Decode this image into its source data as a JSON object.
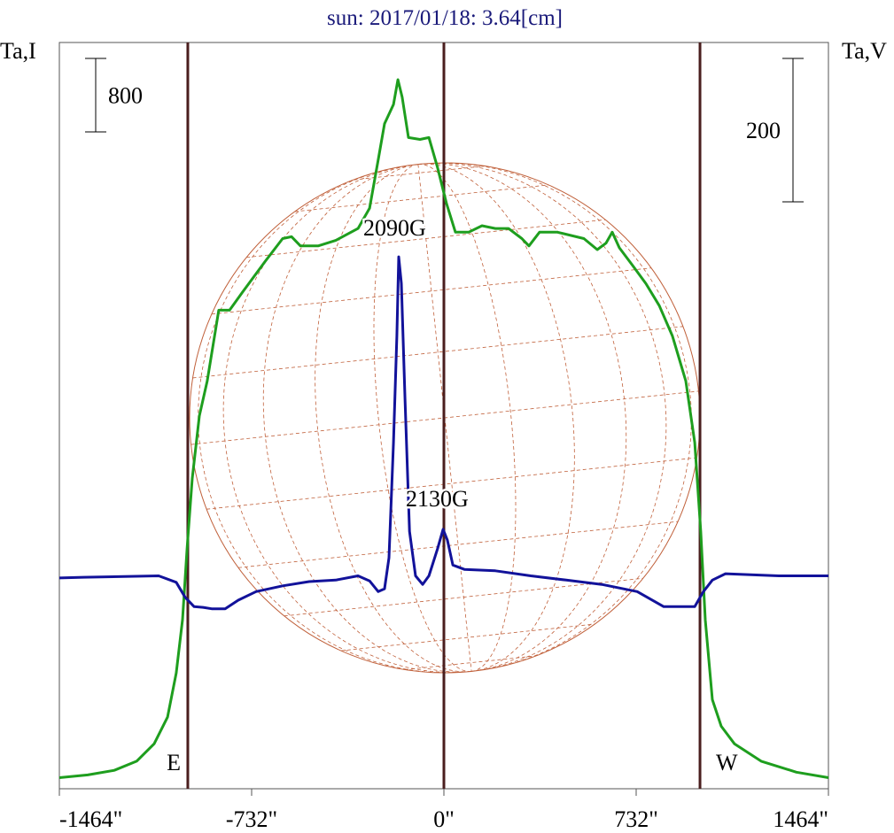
{
  "chart_data": {
    "type": "line",
    "title": "sun: 2017/01/18: 3.64[cm]",
    "y_label": "Ta,I",
    "y2_label": "Ta,V",
    "xlim": [
      -1464,
      1464
    ],
    "xticks": [
      {
        "value": -1464,
        "label": "-1464\""
      },
      {
        "value": -732,
        "label": "-732\""
      },
      {
        "value": 0,
        "label": "0\""
      },
      {
        "value": 732,
        "label": "732\""
      },
      {
        "value": 1464,
        "label": "1464\""
      }
    ],
    "ylim": [
      0,
      8125
    ],
    "y2lim": [
      -295,
      746
    ],
    "scale_bars": [
      {
        "value": 800,
        "axis": "y"
      },
      {
        "value": 200,
        "axis": "y2"
      }
    ],
    "markers": [
      {
        "x": -975,
        "label": "E"
      },
      {
        "x": 0
      },
      {
        "x": 975,
        "label": "W"
      }
    ],
    "marker_color": "#4a1e1e",
    "annotations": [
      "2090G",
      "2130G"
    ],
    "series": [
      {
        "name": "I",
        "color": "#1e9e1e",
        "axis": "y",
        "x": [
          -1464,
          -1356,
          -1255,
          -1170,
          -1103,
          -1052,
          -1019,
          -995,
          -978,
          -958,
          -931,
          -901,
          -857,
          -816,
          -766,
          -681,
          -614,
          -580,
          -546,
          -479,
          -412,
          -327,
          -283,
          -250,
          -226,
          -192,
          -175,
          -159,
          -135,
          -91,
          -57,
          -24,
          10,
          44,
          94,
          145,
          196,
          246,
          297,
          324,
          364,
          432,
          533,
          584,
          617,
          641,
          668,
          718,
          769,
          820,
          870,
          921,
          955,
          978,
          995,
          1022,
          1056,
          1106,
          1208,
          1342,
          1464
        ],
        "values": [
          120,
          150,
          200,
          300,
          490,
          780,
          1260,
          1840,
          2610,
          3380,
          4060,
          4440,
          5210,
          5210,
          5410,
          5740,
          5990,
          6010,
          5910,
          5910,
          5970,
          6100,
          6320,
          6850,
          7240,
          7450,
          7720,
          7530,
          7090,
          7070,
          7090,
          6760,
          6370,
          6060,
          6060,
          6130,
          6100,
          6100,
          5990,
          5910,
          6060,
          6060,
          5990,
          5870,
          5940,
          6060,
          5890,
          5700,
          5500,
          5260,
          4930,
          4440,
          3770,
          2800,
          1840,
          970,
          680,
          490,
          300,
          180,
          120
        ]
      },
      {
        "name": "V",
        "color": "#12129a",
        "axis": "y2",
        "x": [
          -1464,
          -1373,
          -1086,
          -1019,
          -985,
          -951,
          -917,
          -884,
          -833,
          -783,
          -715,
          -614,
          -513,
          -412,
          -327,
          -283,
          -250,
          -226,
          -209,
          -192,
          -179,
          -172,
          -162,
          -148,
          -131,
          -108,
          -81,
          -57,
          -24,
          -3,
          13,
          34,
          78,
          196,
          331,
          466,
          601,
          736,
          837,
          955,
          988,
          1022,
          1072,
          1275,
          1464
        ],
        "values": [
          -1,
          0,
          2,
          -7,
          -28,
          -41,
          -42,
          -44,
          -44,
          -32,
          -20,
          -12,
          -6,
          -4,
          2,
          -5,
          -20,
          -16,
          27,
          188,
          336,
          447,
          410,
          249,
          64,
          2,
          -10,
          2,
          40,
          67,
          52,
          17,
          11,
          9,
          2,
          -4,
          -10,
          -20,
          -41,
          -41,
          -20,
          -4,
          5,
          2,
          2
        ]
      }
    ]
  }
}
